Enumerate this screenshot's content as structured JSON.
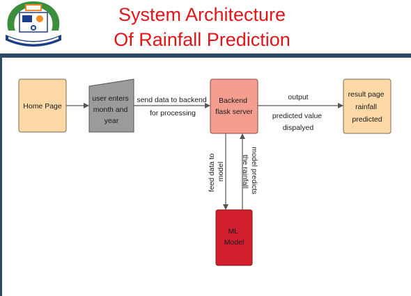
{
  "slide": {
    "title_line1": "System Architecture",
    "title_line2": "Of Rainfall Prediction",
    "logo": {
      "text": "SAVITRI BAI PHULE UNIVERSITY",
      "colors": {
        "blue": "#1d3f8a",
        "green": "#3b8f3b",
        "orange": "#f08a24"
      }
    }
  },
  "diagram": {
    "nodes": {
      "home": {
        "lines": [
          "Home Page"
        ],
        "fill": "#fdd9a8"
      },
      "user": {
        "lines": [
          "user enters",
          "month and",
          "year"
        ],
        "fill": "#9b9b9b"
      },
      "backend": {
        "lines": [
          "Backend",
          "flask server"
        ],
        "fill": "#f59e8f"
      },
      "result": {
        "lines": [
          "result page",
          "rainfall",
          "predicted"
        ],
        "fill": "#fdd9a8"
      },
      "ml": {
        "lines": [
          "ML",
          "Model"
        ],
        "fill": "#d11f2e"
      }
    },
    "edges": {
      "send": {
        "lines": [
          "send data to backend",
          "for processing"
        ]
      },
      "output": {
        "lines": [
          "output"
        ]
      },
      "predicted": {
        "lines": [
          "predicted value",
          "dispalyed"
        ]
      },
      "feed": {
        "lines": [
          "feed data to",
          "model"
        ]
      },
      "predicts": {
        "lines": [
          "model predicts",
          "the rainfall"
        ]
      }
    }
  }
}
